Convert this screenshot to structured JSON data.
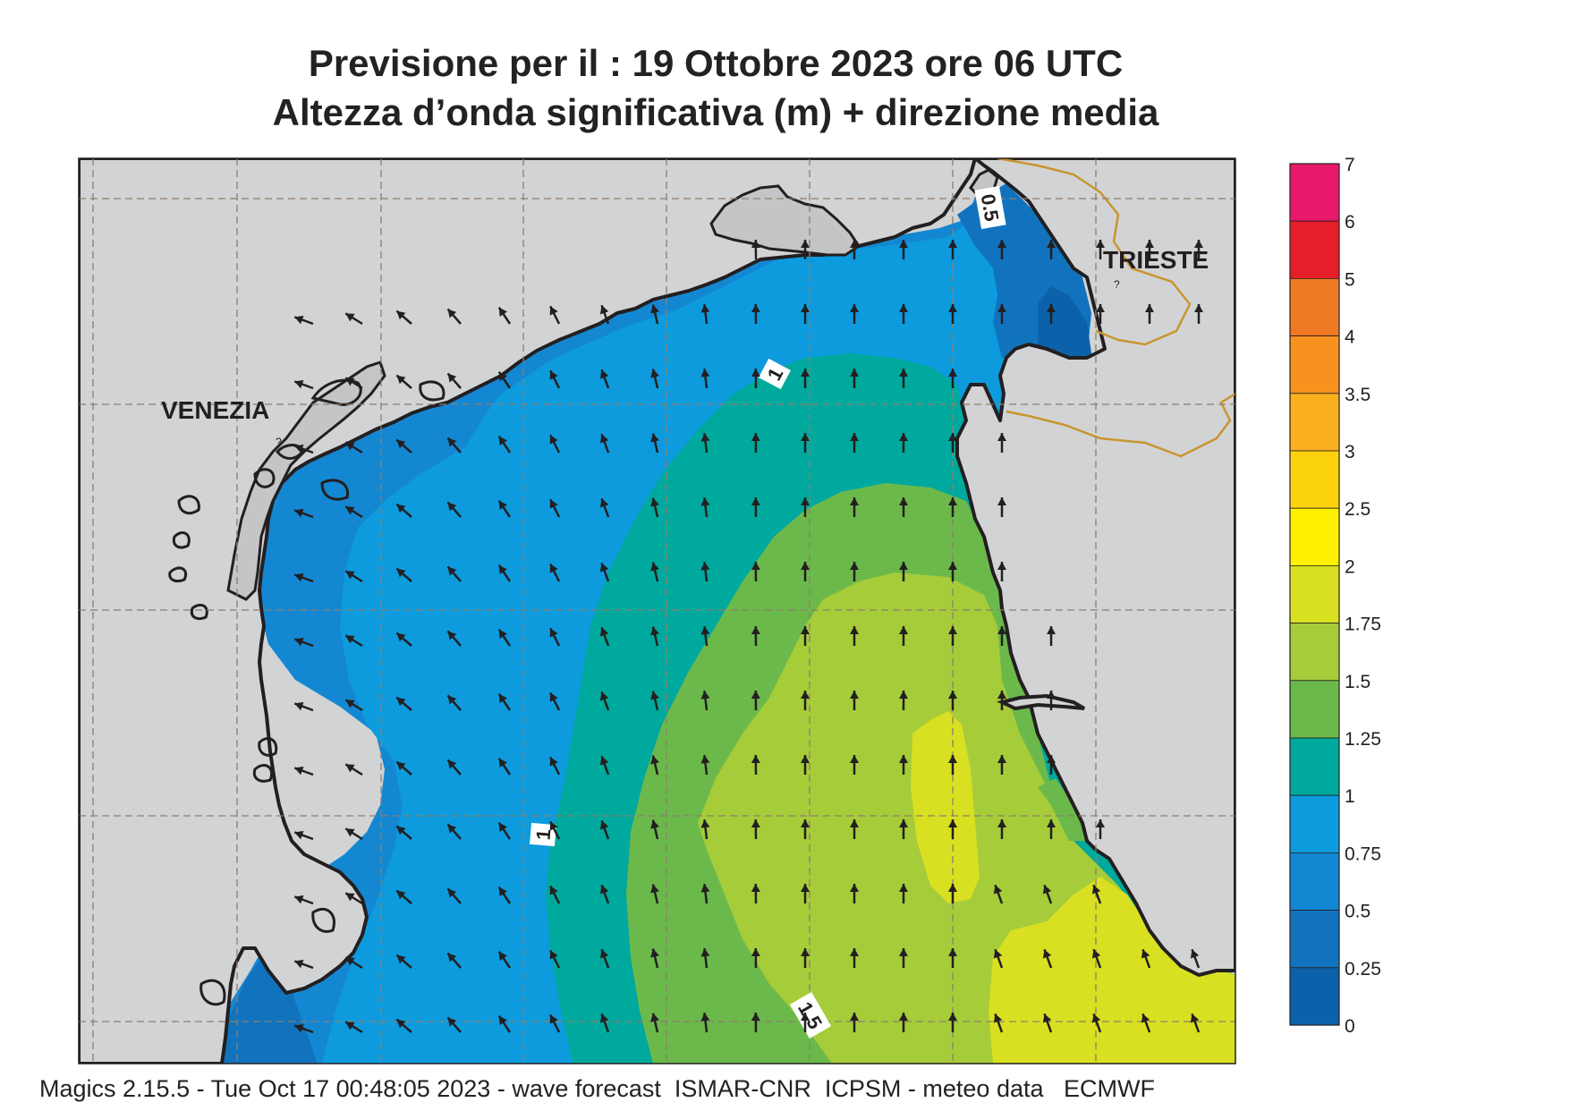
{
  "title": {
    "line1": "Previsione per il  :  19  Ottobre  2023   ore 06 UTC",
    "line2": "Altezza d’onda significativa (m) + direzione media"
  },
  "places": {
    "venezia": "VENEZIA",
    "trieste": "TRIESTE"
  },
  "contour_labels": [
    "1",
    "1",
    "0.5",
    "1.5"
  ],
  "legend": {
    "items": [
      {
        "label": "7",
        "color": null
      },
      {
        "label": "6",
        "color": "#e8186a"
      },
      {
        "label": "5",
        "color": "#e61e2a"
      },
      {
        "label": "4",
        "color": "#f07a24"
      },
      {
        "label": "3.5",
        "color": "#f7921e"
      },
      {
        "label": "3",
        "color": "#fbb01f"
      },
      {
        "label": "2.5",
        "color": "#fcd20e"
      },
      {
        "label": "2",
        "color": "#fff200"
      },
      {
        "label": "1.75",
        "color": "#d8e021"
      },
      {
        "label": "1.5",
        "color": "#a6cc3a"
      },
      {
        "label": "1.25",
        "color": "#6cb94b"
      },
      {
        "label": "1",
        "color": "#00a99d"
      },
      {
        "label": "0.75",
        "color": "#0d9bde"
      },
      {
        "label": "0.5",
        "color": "#1487d2"
      },
      {
        "label": "0.25",
        "color": "#1173be"
      },
      {
        "label": "0",
        "color": "#0b62aa"
      }
    ]
  },
  "colors": {
    "land": "#d2d3d5",
    "lagoon": "#c4c5c7",
    "coast": "#231f20",
    "border": "#c8962e",
    "grid": "#8c7f6e"
  },
  "footer": "Magics 2.15.5 - Tue Oct 17 00:48:05 2023 - wave forecast  ISMAR-CNR  ICPSM - meteo data   ECMWF"
}
